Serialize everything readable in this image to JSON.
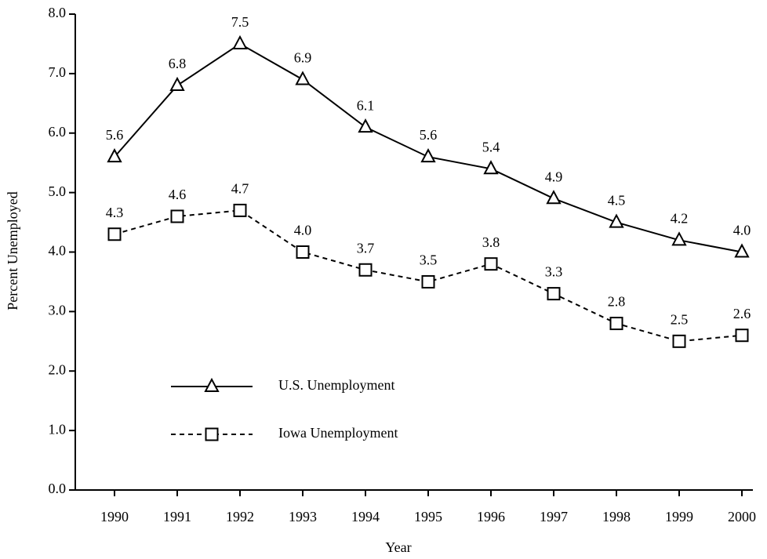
{
  "chart_data": {
    "type": "line",
    "x_label": "Year",
    "y_label": "Percent Unemployed",
    "categories": [
      "1990",
      "1991",
      "1992",
      "1993",
      "1994",
      "1995",
      "1996",
      "1997",
      "1998",
      "1999",
      "2000"
    ],
    "series": [
      {
        "name": "U.S. Unemployment",
        "color": "#000000",
        "marker": "triangle",
        "dash": false,
        "values": [
          5.6,
          6.8,
          7.5,
          6.9,
          6.1,
          5.6,
          5.4,
          4.9,
          4.5,
          4.2,
          4.0
        ],
        "value_labels": [
          "5.6",
          "6.8",
          "7.5",
          "6.9",
          "6.1",
          "5.6",
          "5.4",
          "4.9",
          "4.5",
          "4.2",
          "4.0"
        ]
      },
      {
        "name": "Iowa Unemployment",
        "color": "#000000",
        "marker": "square",
        "dash": true,
        "values": [
          4.3,
          4.6,
          4.7,
          4.0,
          3.7,
          3.5,
          3.8,
          3.3,
          2.8,
          2.5,
          2.6
        ],
        "value_labels": [
          "4.3",
          "4.6",
          "4.7",
          "4.0",
          "3.7",
          "3.5",
          "3.8",
          "3.3",
          "2.8",
          "2.5",
          "2.6"
        ]
      }
    ],
    "ylim": [
      0,
      8
    ],
    "yticks": [
      {
        "value": 0,
        "label": "0.0"
      },
      {
        "value": 1,
        "label": "1.0"
      },
      {
        "value": 2,
        "label": "2.0"
      },
      {
        "value": 3,
        "label": "3.0"
      },
      {
        "value": 4,
        "label": "4.0"
      },
      {
        "value": 5,
        "label": "5.0"
      },
      {
        "value": 6,
        "label": "6.0"
      },
      {
        "value": 7,
        "label": "7.0"
      },
      {
        "value": 8,
        "label": "8.0"
      }
    ],
    "grid": false,
    "legend": "lower left"
  }
}
